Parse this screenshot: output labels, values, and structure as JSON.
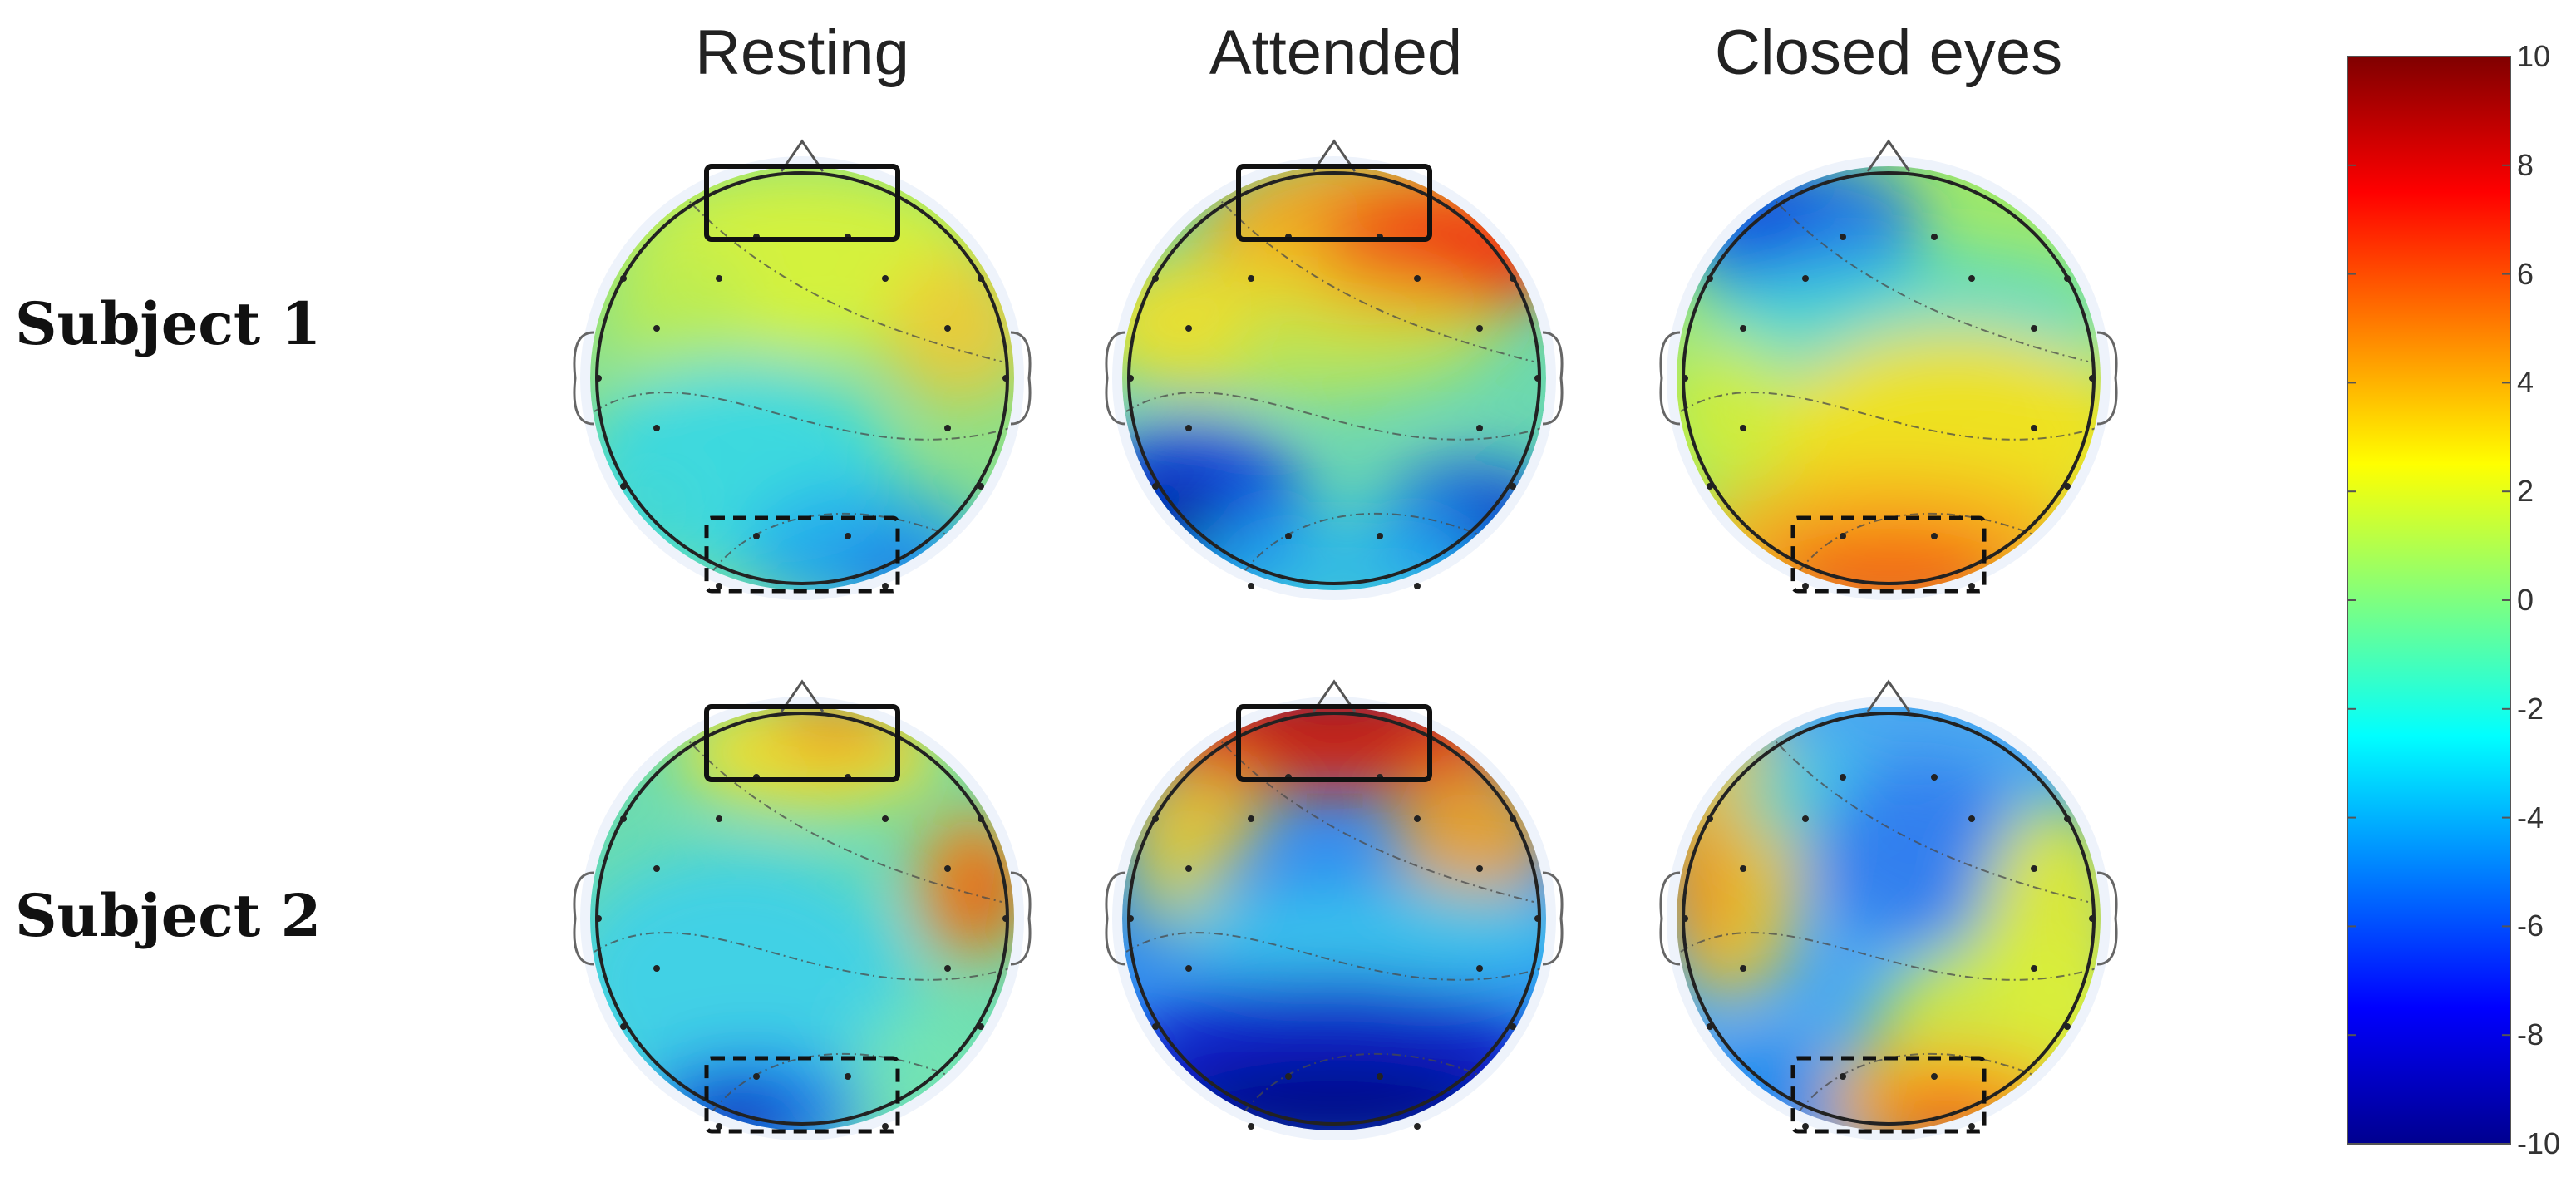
{
  "column_titles": [
    "Resting",
    "Attended",
    "Closed eyes"
  ],
  "row_labels": [
    "Subject 1",
    "Subject 2"
  ],
  "colorbar": {
    "min": -10,
    "max": 10,
    "ticks": [
      "10",
      "8",
      "6",
      "4",
      "2",
      "0",
      "-2",
      "-4",
      "-6",
      "-8",
      "-10"
    ],
    "colormap": "jet"
  },
  "topomaps": [
    {
      "row": "Subject 1",
      "condition": "Resting",
      "frontal_box": "solid",
      "occipital_box": "dashed"
    },
    {
      "row": "Subject 1",
      "condition": "Attended",
      "frontal_box": "solid",
      "occipital_box": "none"
    },
    {
      "row": "Subject 1",
      "condition": "Closed eyes",
      "frontal_box": "none",
      "occipital_box": "dashed"
    },
    {
      "row": "Subject 2",
      "condition": "Resting",
      "frontal_box": "solid",
      "occipital_box": "dashed"
    },
    {
      "row": "Subject 2",
      "condition": "Attended",
      "frontal_box": "solid",
      "occipital_box": "none"
    },
    {
      "row": "Subject 2",
      "condition": "Closed eyes",
      "frontal_box": "none",
      "occipital_box": "dashed"
    }
  ],
  "colors": {
    "jet_stops": [
      "#00008f",
      "#0000ff",
      "#00ffff",
      "#7fff7f",
      "#ffff00",
      "#ff0000",
      "#800000"
    ]
  }
}
